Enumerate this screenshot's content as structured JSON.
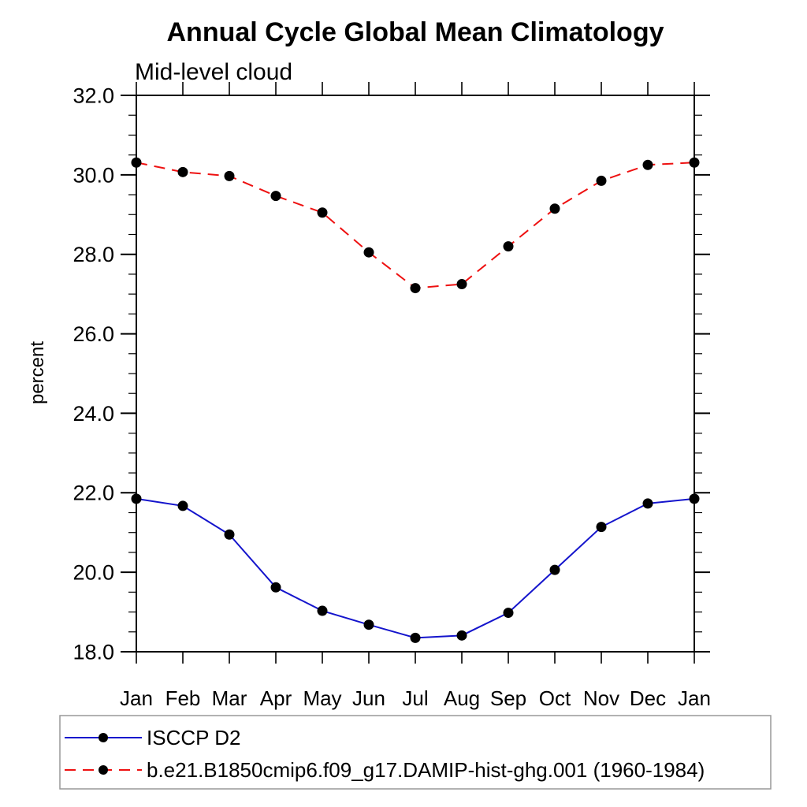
{
  "chart_data": {
    "type": "line",
    "title": "Annual Cycle Global Mean Climatology",
    "subtitle": "Mid-level cloud",
    "ylabel": "percent",
    "x_categories": [
      "Jan",
      "Feb",
      "Mar",
      "Apr",
      "May",
      "Jun",
      "Jul",
      "Aug",
      "Sep",
      "Oct",
      "Nov",
      "Dec",
      "Jan"
    ],
    "ylim": [
      18.0,
      32.0
    ],
    "ytick_major_step": 2.0,
    "ytick_minor_step": 0.5,
    "ytick_labels": [
      "18.0",
      "20.0",
      "22.0",
      "24.0",
      "26.0",
      "28.0",
      "30.0",
      "32.0"
    ],
    "grid": "off",
    "legend_position": "bottom-left-box",
    "series": [
      {
        "name": "ISCCP D2",
        "color": "#1414cc",
        "line_style": "solid",
        "marker": "black-dot",
        "values": [
          21.85,
          21.67,
          20.95,
          19.62,
          19.03,
          18.68,
          18.35,
          18.41,
          18.98,
          20.06,
          21.14,
          21.73,
          21.85
        ]
      },
      {
        "name": "b.e21.B1850cmip6.f09_g17.DAMIP-hist-ghg.001 (1960-1984)",
        "color": "#ee1111",
        "line_style": "dashed",
        "marker": "black-dot",
        "values": [
          30.31,
          30.07,
          29.97,
          29.47,
          29.05,
          28.05,
          27.15,
          27.25,
          28.2,
          29.15,
          29.85,
          30.25,
          30.31
        ]
      }
    ],
    "colors": {
      "frame": "#000000",
      "marker": "#000000",
      "legend_border": "#999999",
      "background": "#ffffff"
    }
  }
}
